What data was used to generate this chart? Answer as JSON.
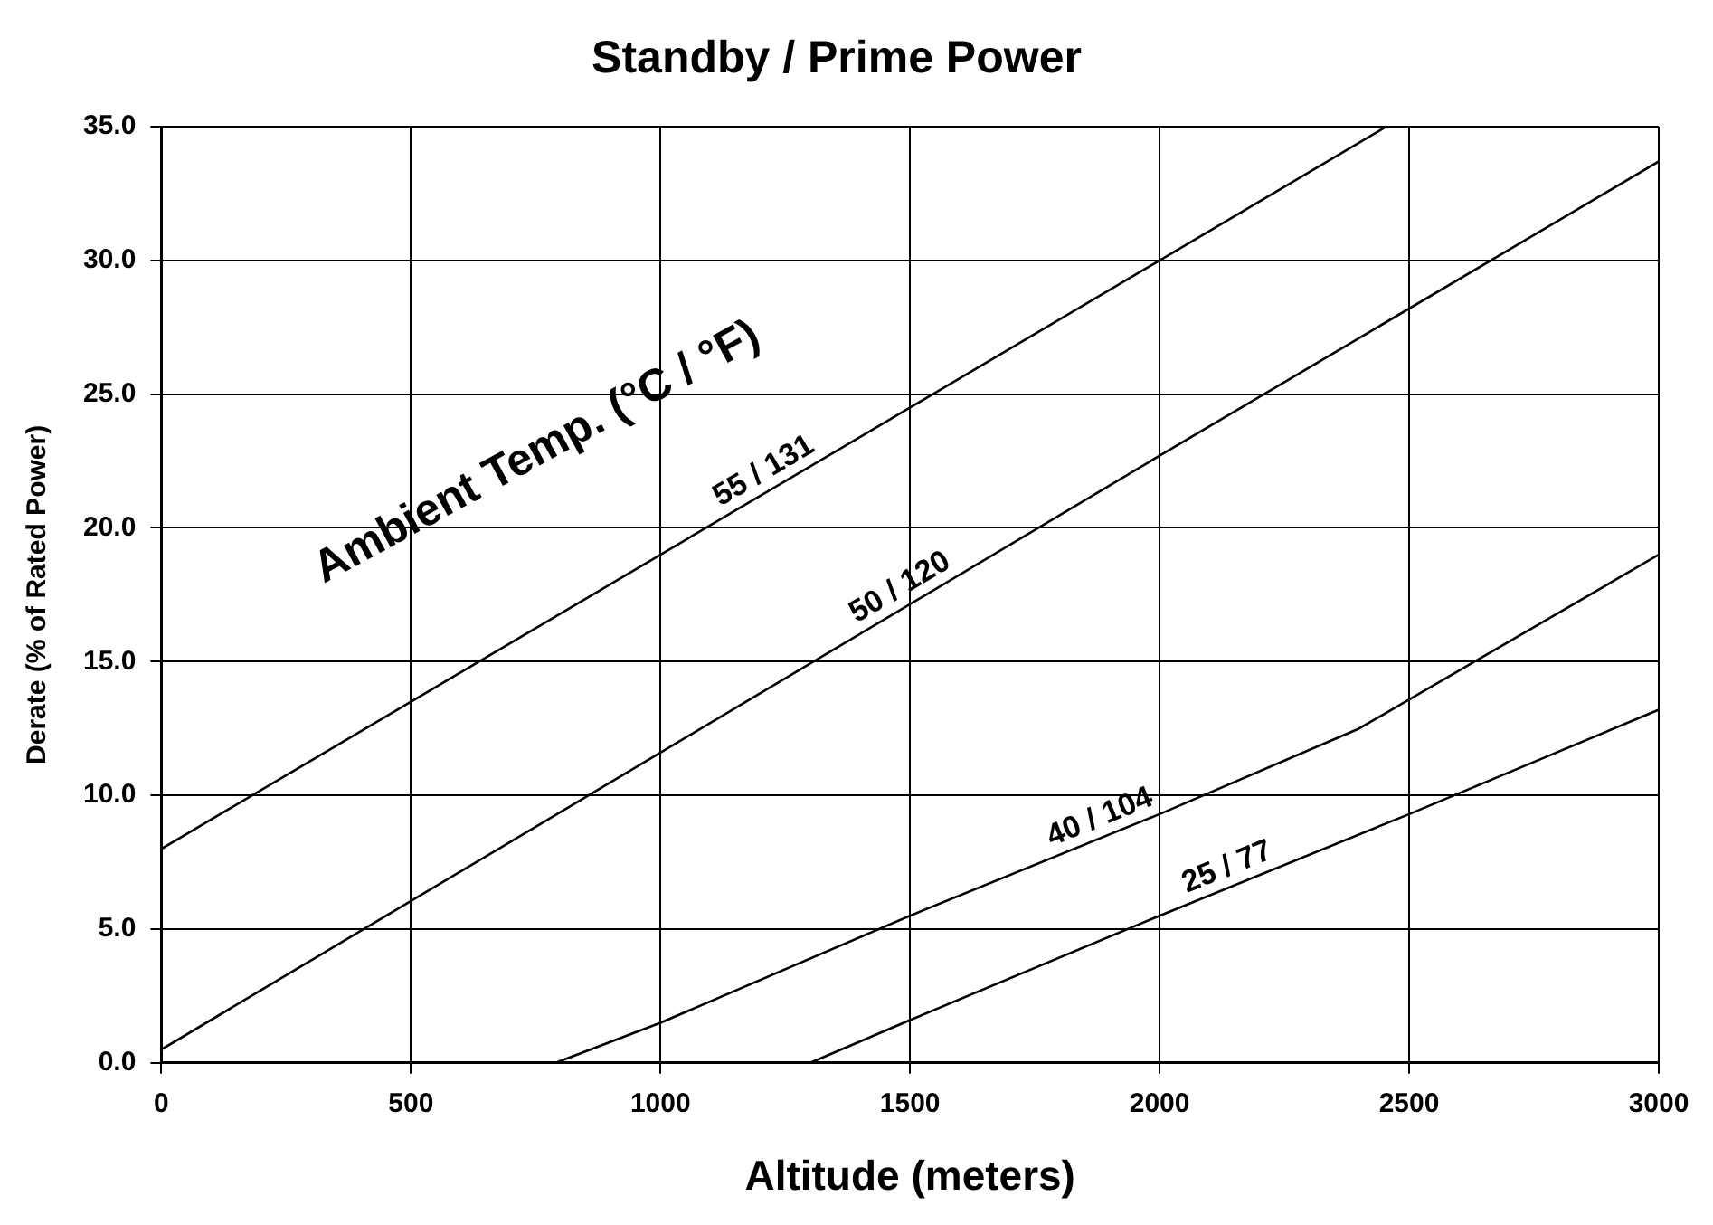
{
  "chart_data": {
    "type": "line",
    "title": "Standby / Prime Power",
    "xlabel": "Altitude (meters)",
    "ylabel": "Derate (% of Rated Power)",
    "annotations": [
      "Ambient Temp. (°C / °F)"
    ],
    "series": [
      {
        "name": "55 / 131",
        "color": "#000000",
        "x": [
          0,
          1000,
          2000,
          2454
        ],
        "values": [
          8.0,
          19.0,
          30.0,
          35.0
        ]
      },
      {
        "name": "50 / 120",
        "color": "#000000",
        "x": [
          0,
          1000,
          2000,
          3000
        ],
        "values": [
          0.5,
          11.6,
          22.7,
          33.7
        ]
      },
      {
        "name": "40 / 104",
        "color": "#000000",
        "x": [
          790,
          1000,
          1500,
          2000,
          2400,
          3000
        ],
        "values": [
          0,
          1.5,
          5.5,
          9.3,
          12.5,
          19.0
        ]
      },
      {
        "name": "25 / 77",
        "color": "#000000",
        "x": [
          1300,
          1500,
          2000,
          2500,
          3000
        ],
        "values": [
          0,
          1.6,
          5.5,
          9.3,
          13.2
        ]
      }
    ],
    "xlim": [
      0,
      3000
    ],
    "xticks": [
      0,
      500,
      1000,
      1500,
      2000,
      2500,
      3000
    ],
    "ylim": [
      0,
      35
    ],
    "yticks": [
      {
        "value": 0,
        "label": "0.0"
      },
      {
        "value": 5,
        "label": "5.0"
      },
      {
        "value": 10,
        "label": "10.0"
      },
      {
        "value": 15,
        "label": "15.0"
      },
      {
        "value": 20,
        "label": "20.0"
      },
      {
        "value": 25,
        "label": "25.0"
      },
      {
        "value": 30,
        "label": "30.0"
      },
      {
        "value": 35,
        "label": "35.0"
      }
    ],
    "grid": true,
    "legend": false,
    "marker": "none",
    "line_style": "solid"
  }
}
